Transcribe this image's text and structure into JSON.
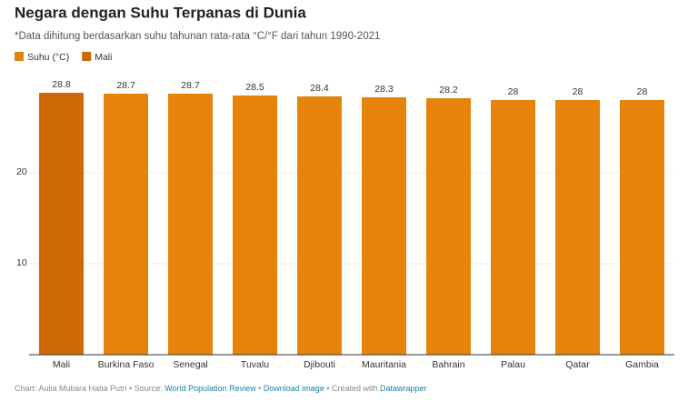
{
  "chart_data": {
    "type": "bar",
    "title": "Negara dengan Suhu Terpanas di Dunia",
    "subtitle": "*Data dihitung berdasarkan suhu tahunan rata-rata °C/°F dari tahun 1990-2021",
    "categories": [
      "Mali",
      "Burkina Faso",
      "Senegal",
      "Tuvalu",
      "Djibouti",
      "Mauritania",
      "Bahrain",
      "Palau",
      "Qatar",
      "Gambia"
    ],
    "series": [
      {
        "name": "Suhu (°C)",
        "color": "#e5830a",
        "values": [
          null,
          28.7,
          28.7,
          28.5,
          28.4,
          28.3,
          28.2,
          28,
          28,
          28
        ]
      },
      {
        "name": "Mali",
        "color": "#cd6a05",
        "values": [
          28.8,
          null,
          null,
          null,
          null,
          null,
          null,
          null,
          null,
          null
        ]
      }
    ],
    "ylim": [
      0,
      30
    ],
    "yticks": [
      10,
      20
    ],
    "grid": true,
    "footer": [
      "Chart: Aulia Mutiara Hatia Putri • Source: ",
      "World Population Review",
      " • ",
      "Download image",
      " • Created with ",
      "Datawrapper"
    ]
  }
}
